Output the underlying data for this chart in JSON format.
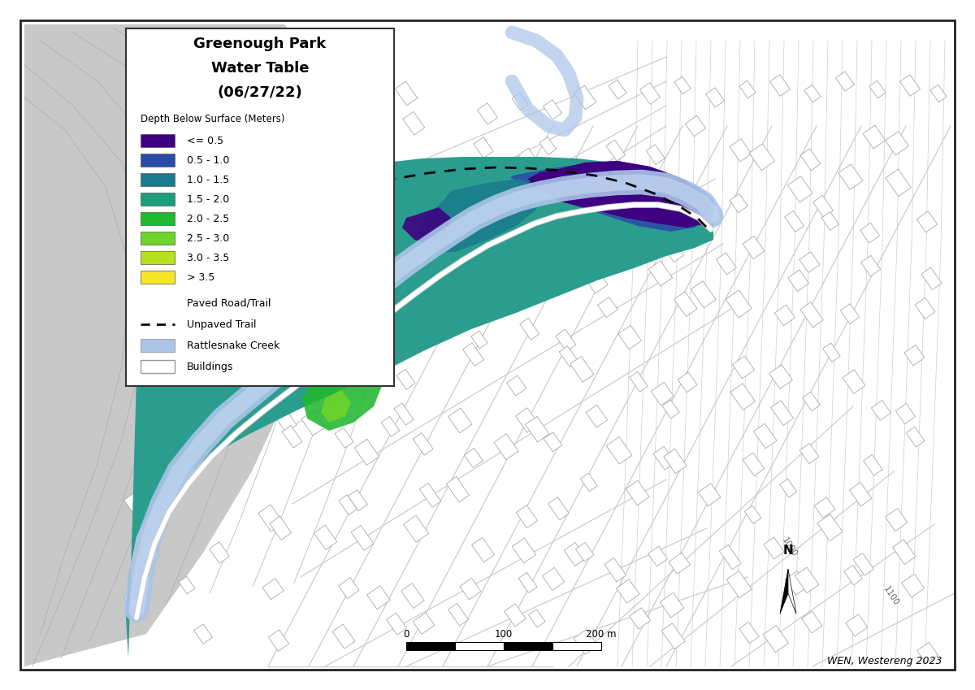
{
  "title_lines": [
    "Greenough Park",
    "Water Table",
    "(06/27/22)"
  ],
  "legend_title": "Depth Below Surface (Meters)",
  "legend_entries": [
    {
      "color": "#3d0080",
      "label": "<= 0.5"
    },
    {
      "color": "#2b4ba8",
      "label": "0.5 - 1.0"
    },
    {
      "color": "#1a7b8c",
      "label": "1.0 - 1.5"
    },
    {
      "color": "#1a9e7c",
      "label": "1.5 - 2.0"
    },
    {
      "color": "#22b830",
      "label": "2.0 - 2.5"
    },
    {
      "color": "#6dd42a",
      "label": "2.5 - 3.0"
    },
    {
      "color": "#b8e020",
      "label": "3.0 - 3.5"
    },
    {
      "color": "#f5e628",
      "label": "> 3.5"
    }
  ],
  "background_color": "#ffffff",
  "map_bg_light": "#d8d8d8",
  "map_bg_dark": "#c8c8c8",
  "attribution": "WEN, Westereng 2023",
  "figsize": [
    12.0,
    8.49
  ],
  "park_base_color": "#2a9d8f",
  "creek_color": "#b0c8e8",
  "road_color": "#ffffff",
  "trail_color": "#000000"
}
